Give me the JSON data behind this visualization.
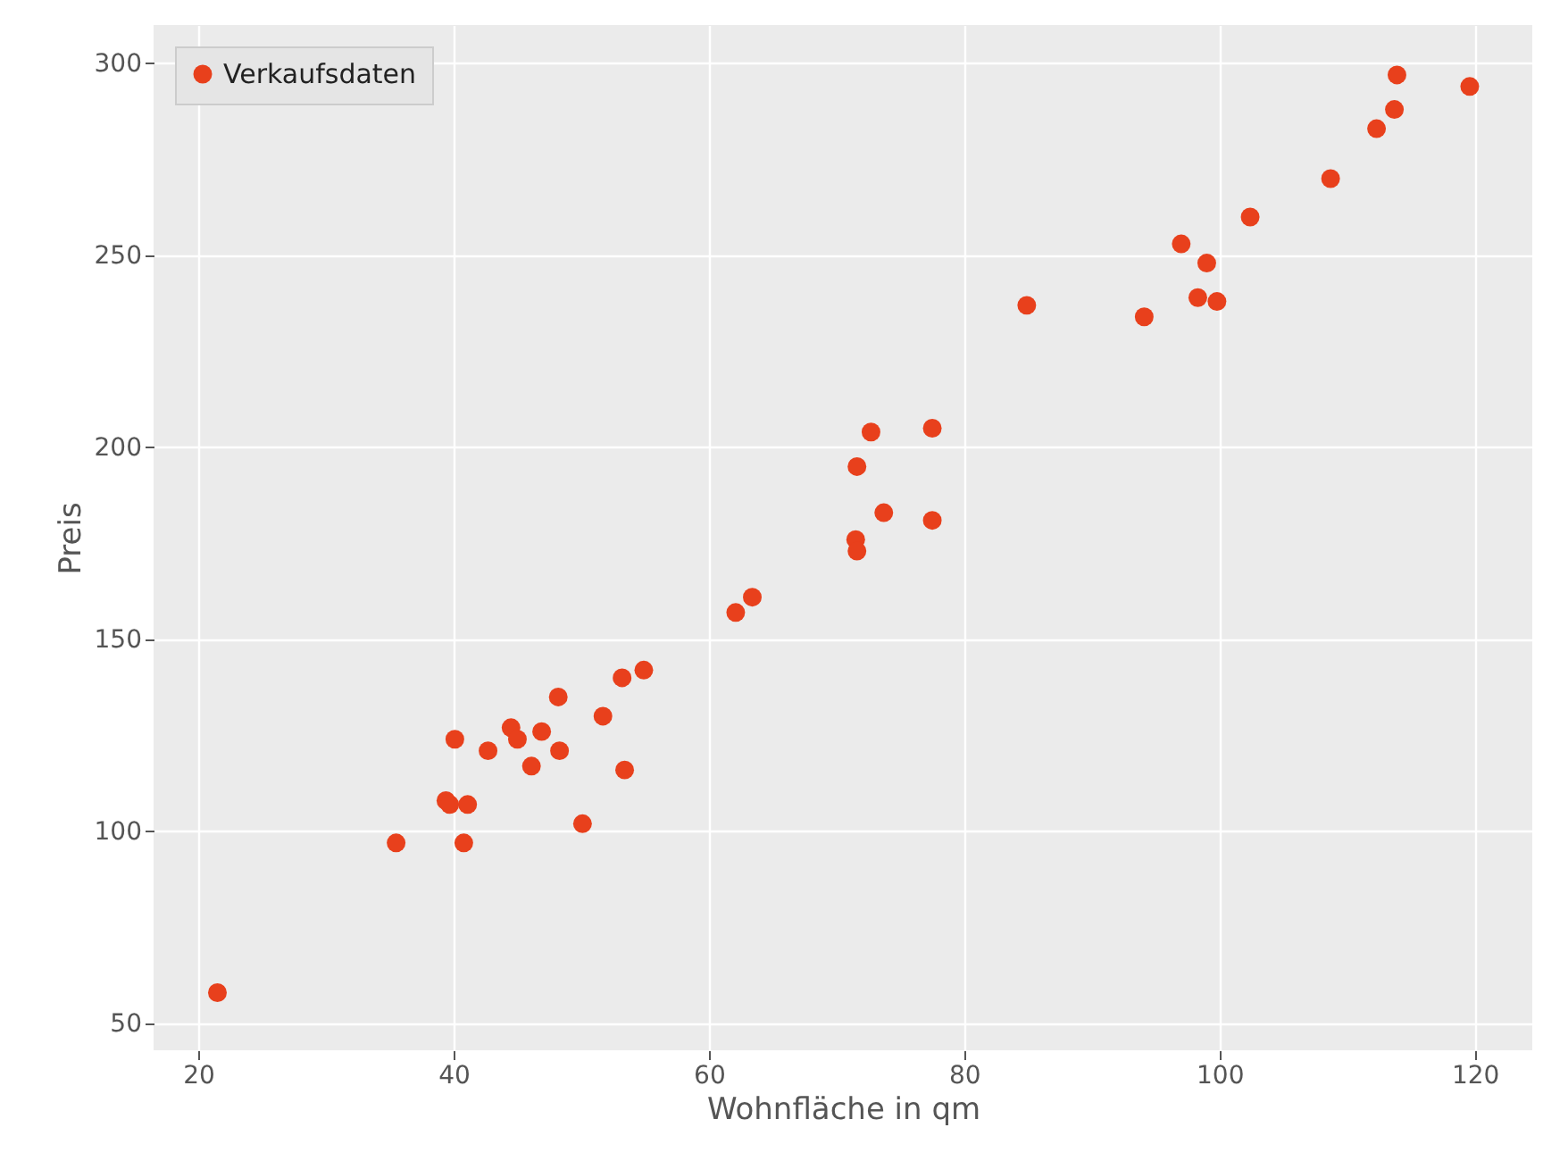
{
  "chart_data": {
    "type": "scatter",
    "xlabel": "Wohnfläche in qm",
    "ylabel": "Preis",
    "xlim": [
      16.5,
      124.5
    ],
    "ylim": [
      43,
      310
    ],
    "xticks": [
      20,
      40,
      60,
      80,
      100,
      120
    ],
    "yticks": [
      50,
      100,
      150,
      200,
      250,
      300
    ],
    "grid": true,
    "legend": "top left",
    "marker": "circle",
    "x": [
      21.5,
      35.5,
      39.4,
      39.7,
      41.1,
      40.1,
      40.8,
      42.7,
      44.5,
      45,
      46.1,
      46.9,
      48.3,
      48.2,
      50.1,
      51.7,
      53.2,
      53.4,
      54.9,
      62.1,
      63.4,
      71.5,
      71.6,
      71.6,
      72.7,
      73.7,
      77.5,
      77.5,
      84.9,
      94.1,
      97,
      99,
      98.3,
      99.8,
      102.4,
      108.7,
      112.3,
      113.7,
      113.9,
      119.6
    ],
    "series": [
      {
        "name": "Verkaufsdaten",
        "color": "#e8401c",
        "values": [
          58,
          97,
          108,
          107,
          107,
          124,
          97,
          121,
          127,
          124,
          117,
          126,
          121,
          135,
          102,
          130,
          140,
          116,
          142,
          157,
          161,
          176,
          173,
          195,
          204,
          183,
          205,
          181,
          237,
          234,
          253,
          248,
          239,
          238,
          260,
          270,
          283,
          288,
          297,
          294
        ]
      }
    ]
  }
}
